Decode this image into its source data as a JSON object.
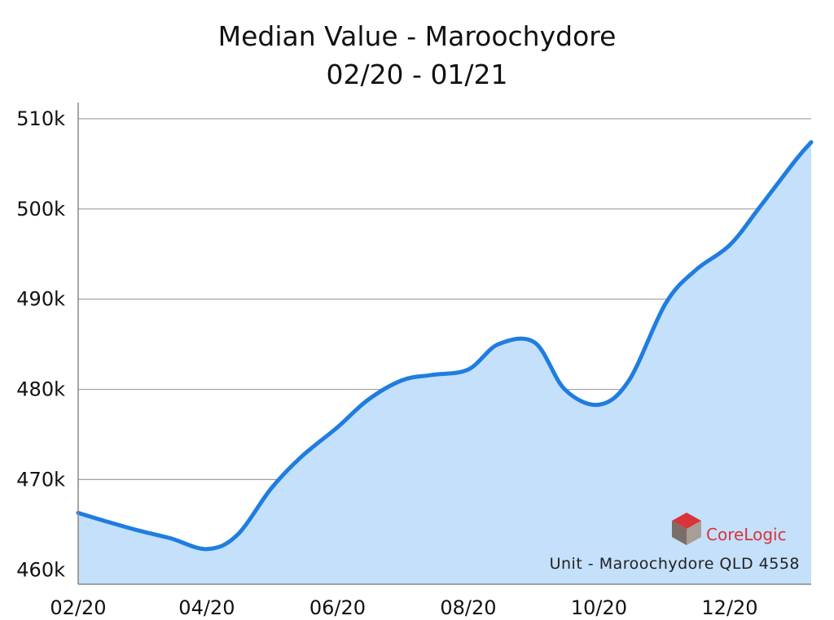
{
  "chart_data": {
    "type": "area",
    "title": "Median Value - Maroochydore",
    "subtitle": "02/20 - 01/21",
    "xlabel": "",
    "ylabel": "",
    "x_tick_labels": [
      "02/20",
      "04/20",
      "06/20",
      "08/20",
      "10/20",
      "12/20"
    ],
    "y_tick_labels": [
      "460k",
      "470k",
      "480k",
      "490k",
      "500k",
      "510k"
    ],
    "ylim": [
      458400,
      511800
    ],
    "grid": true,
    "series": [
      {
        "color": "#1f7de0",
        "fill_color": "#c4e0fa",
        "points": [
          {
            "x": "2020-02-01",
            "y": 466300
          },
          {
            "x": "2020-02-15",
            "y": 465300
          },
          {
            "x": "2020-03-01",
            "y": 464300
          },
          {
            "x": "2020-03-15",
            "y": 463500
          },
          {
            "x": "2020-04-01",
            "y": 462300
          },
          {
            "x": "2020-04-15",
            "y": 463800
          },
          {
            "x": "2020-05-01",
            "y": 469000
          },
          {
            "x": "2020-05-15",
            "y": 472500
          },
          {
            "x": "2020-06-01",
            "y": 475800
          },
          {
            "x": "2020-06-15",
            "y": 478800
          },
          {
            "x": "2020-07-01",
            "y": 481000
          },
          {
            "x": "2020-07-15",
            "y": 481600
          },
          {
            "x": "2020-08-01",
            "y": 482200
          },
          {
            "x": "2020-08-15",
            "y": 485000
          },
          {
            "x": "2020-09-01",
            "y": 485200
          },
          {
            "x": "2020-09-15",
            "y": 480000
          },
          {
            "x": "2020-10-01",
            "y": 478300
          },
          {
            "x": "2020-10-15",
            "y": 481000
          },
          {
            "x": "2020-11-01",
            "y": 489500
          },
          {
            "x": "2020-11-15",
            "y": 493200
          },
          {
            "x": "2020-12-01",
            "y": 496000
          },
          {
            "x": "2020-12-15",
            "y": 500200
          },
          {
            "x": "2021-01-01",
            "y": 505500
          },
          {
            "x": "2021-01-08",
            "y": 507400
          }
        ]
      }
    ],
    "watermark_text": "Unit - Maroochydore QLD 4558",
    "brand": {
      "name": "CoreLogic",
      "colors": {
        "red": "#d9343b",
        "dark": "#7a6f68",
        "mid": "#a89e97"
      }
    }
  }
}
